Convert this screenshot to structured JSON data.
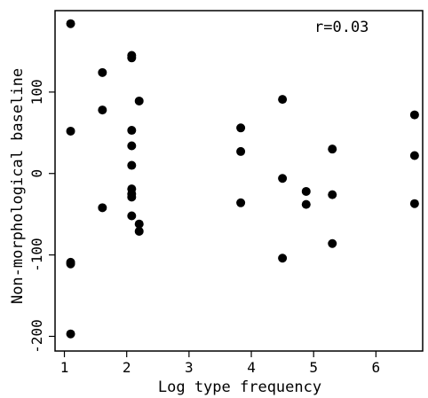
{
  "chart_data": {
    "type": "scatter",
    "xlabel": "Log type frequency",
    "ylabel": "Non-morphological baseline",
    "annotation": "r=0.03",
    "xlim": [
      0.85,
      6.75
    ],
    "ylim": [
      -218,
      200
    ],
    "xticks": [
      1,
      2,
      3,
      4,
      5,
      6
    ],
    "xtick_labels": [
      "1",
      "2",
      "3",
      "4",
      "5",
      "6"
    ],
    "yticks": [
      -200,
      -100,
      0,
      100
    ],
    "ytick_labels": [
      "-200",
      "-100",
      "0",
      "100"
    ],
    "grid": false,
    "legend": "none",
    "marker_color": "#000000",
    "points": [
      {
        "x": 1.1,
        "y": 184
      },
      {
        "x": 1.1,
        "y": 52
      },
      {
        "x": 1.1,
        "y": -109
      },
      {
        "x": 1.1,
        "y": -111
      },
      {
        "x": 1.1,
        "y": -197
      },
      {
        "x": 1.61,
        "y": 124
      },
      {
        "x": 1.61,
        "y": 78
      },
      {
        "x": 1.61,
        "y": -42
      },
      {
        "x": 2.08,
        "y": 145
      },
      {
        "x": 2.08,
        "y": 142
      },
      {
        "x": 2.08,
        "y": 53
      },
      {
        "x": 2.08,
        "y": 34
      },
      {
        "x": 2.08,
        "y": 10
      },
      {
        "x": 2.08,
        "y": -19
      },
      {
        "x": 2.08,
        "y": -25
      },
      {
        "x": 2.08,
        "y": -29
      },
      {
        "x": 2.08,
        "y": -52
      },
      {
        "x": 2.2,
        "y": 89
      },
      {
        "x": 2.2,
        "y": -62
      },
      {
        "x": 2.2,
        "y": -71
      },
      {
        "x": 3.83,
        "y": 56
      },
      {
        "x": 3.83,
        "y": 27
      },
      {
        "x": 3.83,
        "y": -36
      },
      {
        "x": 4.5,
        "y": 91
      },
      {
        "x": 4.5,
        "y": -6
      },
      {
        "x": 4.5,
        "y": -104
      },
      {
        "x": 4.88,
        "y": -22
      },
      {
        "x": 4.88,
        "y": -38
      },
      {
        "x": 5.3,
        "y": 30
      },
      {
        "x": 5.3,
        "y": -26
      },
      {
        "x": 5.3,
        "y": -86
      },
      {
        "x": 6.62,
        "y": 72
      },
      {
        "x": 6.62,
        "y": 22
      },
      {
        "x": 6.62,
        "y": -37
      }
    ]
  }
}
